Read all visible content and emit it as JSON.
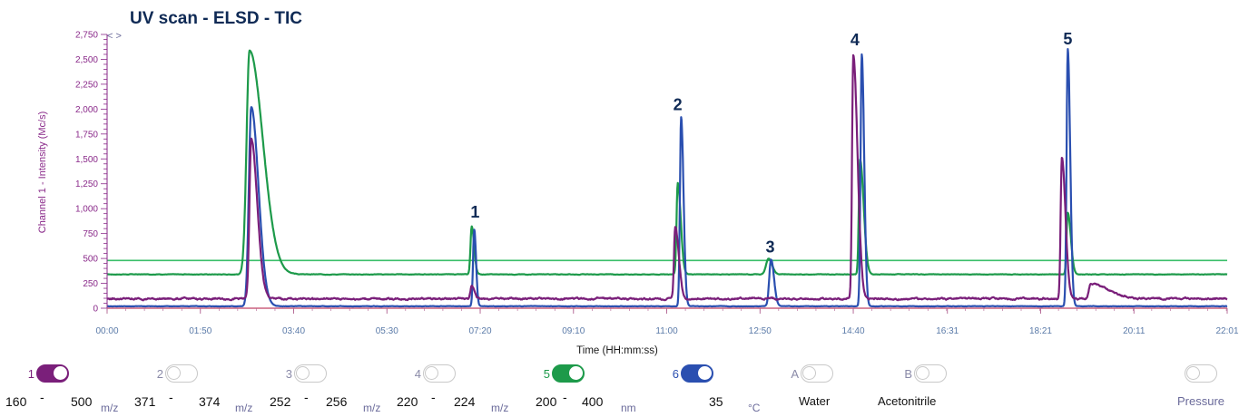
{
  "chart_data": {
    "type": "line",
    "title": "UV scan - ELSD - TIC",
    "ylabel": "Channel 1 - Intensity (Mc/s)",
    "xlabel": "Time (HH:mm:ss)",
    "ylim": [
      0,
      2750
    ],
    "xlim_seconds": [
      0,
      1321
    ],
    "y_ticks": [
      "0",
      "250",
      "500",
      "750",
      "1,000",
      "1,250",
      "1,500",
      "1,750",
      "2,000",
      "2,250",
      "2,500",
      "2,750"
    ],
    "x_ticks": [
      {
        "label": "00:00",
        "t": 0
      },
      {
        "label": "01:50",
        "t": 110
      },
      {
        "label": "03:40",
        "t": 220
      },
      {
        "label": "05:30",
        "t": 330
      },
      {
        "label": "07:20",
        "t": 440
      },
      {
        "label": "09:10",
        "t": 550
      },
      {
        "label": "11:00",
        "t": 660
      },
      {
        "label": "12:50",
        "t": 770
      },
      {
        "label": "14:40",
        "t": 880
      },
      {
        "label": "16:31",
        "t": 991
      },
      {
        "label": "18:21",
        "t": 1101
      },
      {
        "label": "20:11",
        "t": 1211
      },
      {
        "label": "22:01",
        "t": 1321
      }
    ],
    "peak_labels": [
      {
        "label": "1",
        "t": 434,
        "y": 910
      },
      {
        "label": "2",
        "t": 673,
        "y": 1990
      },
      {
        "label": "3",
        "t": 782,
        "y": 560
      },
      {
        "label": "4",
        "t": 882,
        "y": 2640
      },
      {
        "label": "5",
        "t": 1133,
        "y": 2650
      }
    ],
    "series": [
      {
        "color": "#1d9a4a",
        "baseline": 340,
        "noise": 5,
        "peaks": [
          {
            "t": 168,
            "h": 2250,
            "rise": 5,
            "decay": 22
          },
          {
            "t": 430,
            "h": 480,
            "rise": 2,
            "decay": 4
          },
          {
            "t": 673,
            "h": 920,
            "rise": 2,
            "decay": 5
          },
          {
            "t": 780,
            "h": 160,
            "rise": 4,
            "decay": 6
          },
          {
            "t": 888,
            "h": 1150,
            "rise": 2,
            "decay": 6
          },
          {
            "t": 1133,
            "h": 620,
            "rise": 2,
            "decay": 5
          }
        ]
      },
      {
        "color": "#2a4fb0",
        "baseline": 20,
        "noise": 4,
        "peaks": [
          {
            "t": 170,
            "h": 2000,
            "rise": 4,
            "decay": 12
          },
          {
            "t": 433,
            "h": 770,
            "rise": 2,
            "decay": 3
          },
          {
            "t": 677,
            "h": 1900,
            "rise": 2,
            "decay": 4
          },
          {
            "t": 783,
            "h": 470,
            "rise": 3,
            "decay": 5
          },
          {
            "t": 890,
            "h": 2530,
            "rise": 2,
            "decay": 4
          },
          {
            "t": 1133,
            "h": 2580,
            "rise": 2,
            "decay": 4
          }
        ]
      },
      {
        "color": "#7a1f7a",
        "baseline": 95,
        "noise": 18,
        "peaks": [
          {
            "t": 170,
            "h": 1600,
            "rise": 3,
            "decay": 10
          },
          {
            "t": 430,
            "h": 120,
            "rise": 2,
            "decay": 5
          },
          {
            "t": 670,
            "h": 720,
            "rise": 2,
            "decay": 6
          },
          {
            "t": 880,
            "h": 2450,
            "rise": 2,
            "decay": 7
          },
          {
            "t": 1126,
            "h": 1420,
            "rise": 2,
            "decay": 6
          },
          {
            "t": 1160,
            "h": 150,
            "rise": 3,
            "decay": 30
          }
        ]
      }
    ],
    "reference_lines": [
      {
        "y": 480,
        "color": "#3bbf6a"
      },
      {
        "y": 0,
        "color": "#e0607a"
      }
    ]
  },
  "channels": [
    {
      "num": "1",
      "on": true,
      "color": "#7a1f7a"
    },
    {
      "num": "2",
      "on": false,
      "color": "#9a9ab0"
    },
    {
      "num": "3",
      "on": false,
      "color": "#9a9ab0"
    },
    {
      "num": "4",
      "on": false,
      "color": "#9a9ab0"
    },
    {
      "num": "5",
      "on": true,
      "color": "#1d9a4a"
    },
    {
      "num": "6",
      "on": true,
      "color": "#2a4fb0"
    },
    {
      "num": "A",
      "on": false,
      "color": "#9a9ab0"
    },
    {
      "num": "B",
      "on": false,
      "color": "#9a9ab0"
    },
    {
      "num": "",
      "on": false,
      "color": "#9a9ab0"
    }
  ],
  "params": {
    "ch1_min": "160",
    "ch1_max": "500",
    "ch2_min": "371",
    "ch2_max": "374",
    "ch3_min": "252",
    "ch3_max": "256",
    "ch4_min": "220",
    "ch4_max": "224",
    "ch5_min": "200",
    "ch5_max": "400",
    "ch6_value": "35",
    "solvent_a": "Water",
    "solvent_b": "Acetonitrile",
    "pressure": "Pressure",
    "dash": "-",
    "unit_mz": "m/z",
    "unit_nm": "nm",
    "unit_c": "°C"
  },
  "ui": {
    "collapse_glyph": "< >"
  }
}
